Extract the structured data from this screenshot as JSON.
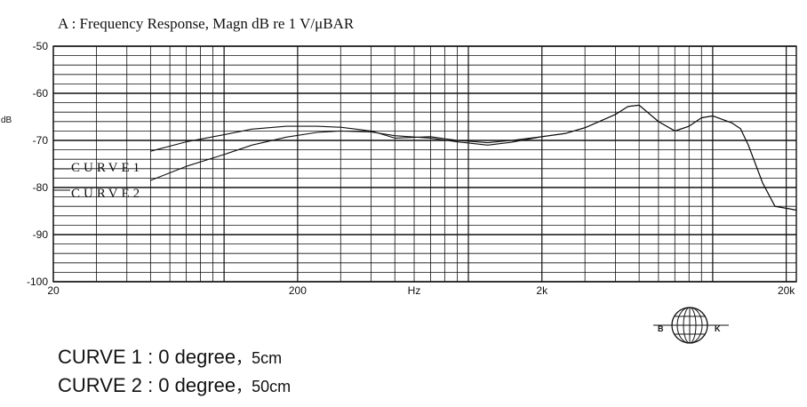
{
  "chart_data": {
    "type": "line",
    "title": "A : Frequency Response, Magn dB re  1 V/μBAR",
    "ylabel": "dB",
    "xlabel": "Hz",
    "xscale": "log",
    "xlim": [
      20,
      22000
    ],
    "ylim": [
      -100,
      -50
    ],
    "grid": true,
    "ytick_labels": [
      "-50",
      "-60",
      "-70",
      "-80",
      "-90",
      "-100"
    ],
    "ytick_values": [
      -50,
      -60,
      -70,
      -80,
      -90,
      -100
    ],
    "xtick_labels": [
      "20",
      "200",
      "Hz",
      "2k",
      "20k"
    ],
    "xtick_values": [
      20,
      200,
      600,
      2000,
      20000
    ],
    "series": [
      {
        "name": "CURVE1",
        "x": [
          50,
          70,
          100,
          130,
          180,
          240,
          300,
          400,
          500,
          700,
          900,
          1200,
          1500,
          2000,
          2500,
          3000,
          3500,
          4000,
          4500,
          5000,
          6000,
          7000,
          8000,
          9000,
          10000,
          12000,
          13000,
          14000,
          16000,
          18000,
          22000
        ],
        "values": [
          -72.3,
          -70.3,
          -68.8,
          -67.6,
          -67.0,
          -67.0,
          -67.2,
          -68.0,
          -69.5,
          -69.2,
          -70.0,
          -70.5,
          -70.0,
          -69.2,
          -68.5,
          -67.3,
          -65.8,
          -64.5,
          -62.8,
          -62.5,
          -66.0,
          -68.0,
          -67.0,
          -65.2,
          -64.8,
          -66.3,
          -67.5,
          -71.0,
          -79.0,
          -84.0,
          -84.8
        ]
      },
      {
        "name": "CURVE2",
        "x": [
          50,
          70,
          100,
          130,
          180,
          240,
          300,
          400,
          500,
          700,
          900,
          1200,
          1500,
          2000,
          2500,
          3000,
          3500,
          4000,
          4500,
          5000,
          6000,
          7000,
          8000,
          9000,
          10000,
          12000,
          13000,
          14000,
          16000,
          18000,
          22000
        ],
        "values": [
          -78.5,
          -75.5,
          -73.0,
          -71.0,
          -69.3,
          -68.3,
          -68.0,
          -68.2,
          -69.0,
          -69.5,
          -70.3,
          -71.0,
          -70.4,
          -69.2,
          -68.5,
          -67.3,
          -65.8,
          -64.5,
          -62.8,
          -62.5,
          -66.0,
          -68.0,
          -67.0,
          -65.2,
          -64.8,
          -66.3,
          -67.5,
          -71.0,
          -79.0,
          -84.0,
          -84.8
        ]
      }
    ]
  },
  "curve_labels": {
    "curve1": "CURVE1",
    "curve2": "CURVE2"
  },
  "logo": {
    "left_letter": "B",
    "right_letter": "K"
  },
  "captions": {
    "curve1_text": "CURVE 1 : 0  degree",
    "curve1_sep": "，",
    "curve1_distance": "5cm",
    "curve2_text": "CURVE 2 : 0  degree",
    "curve2_sep": "，",
    "curve2_distance": "50cm"
  }
}
